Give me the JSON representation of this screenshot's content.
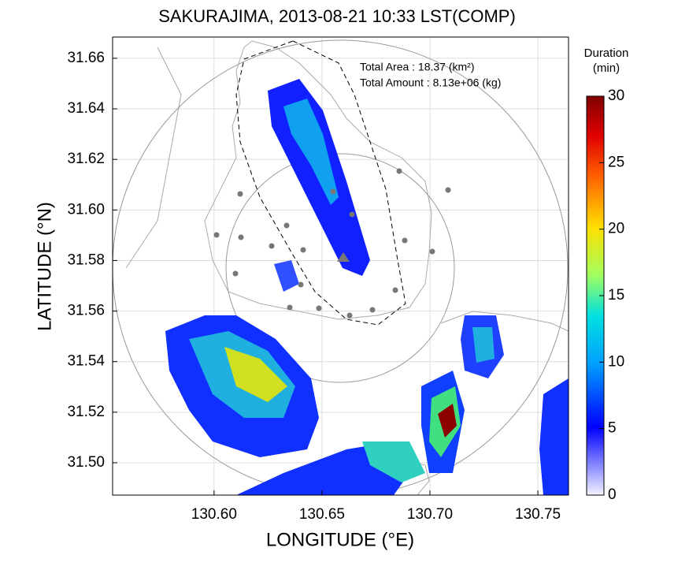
{
  "chart_data": {
    "type": "map",
    "title": "SAKURAJIMA, 2013-08-21 10:33 LST(COMP)",
    "xlabel": "LONGITUDE (°E)",
    "ylabel": "LATITUDE (°N)",
    "xlim": [
      130.553,
      130.7642
    ],
    "ylim": [
      31.4872,
      31.6684
    ],
    "xticks": [
      {
        "value": 130.6,
        "label": "130.60"
      },
      {
        "value": 130.65,
        "label": "130.65"
      },
      {
        "value": 130.7,
        "label": "130.70"
      },
      {
        "value": 130.75,
        "label": "130.75"
      }
    ],
    "yticks": [
      {
        "value": 31.5,
        "label": "31.50"
      },
      31.52,
      31.54,
      31.56,
      31.58,
      {
        "value": 31.6,
        "label": "31.60"
      },
      31.62,
      31.64,
      31.66
    ],
    "grid": true,
    "annotations": [
      "Total Area   : 18.37 (km²)",
      "Total Amount : 8.13e+06 (kg)"
    ],
    "colorbar": {
      "title": [
        "Duration",
        "(min)"
      ],
      "lim": [
        0,
        30
      ],
      "ticks": [
        0,
        5,
        10,
        15,
        20,
        25,
        30
      ]
    }
  }
}
